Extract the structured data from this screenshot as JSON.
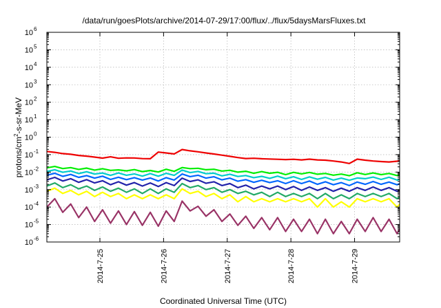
{
  "chart_data": {
    "type": "line",
    "title": "/data/run/goesPlots/archive/2014-07-29/17:00/flux/../flux/5daysMarsFluxes.txt",
    "xlabel": "Coordinated Universal Time (UTC)",
    "ylabel_parts": [
      "protons/cm",
      "2",
      "-s-sr-MeV"
    ],
    "y_scale": "log",
    "ylim": [
      1e-06,
      1000000.0
    ],
    "y_ticks": [
      {
        "base": "10",
        "exp": "-6",
        "value": 1e-06
      },
      {
        "base": "10",
        "exp": "-5",
        "value": 1e-05
      },
      {
        "base": "10",
        "exp": "-4",
        "value": 0.0001
      },
      {
        "base": "10",
        "exp": "-3",
        "value": 0.001
      },
      {
        "base": "10",
        "exp": "-2",
        "value": 0.01
      },
      {
        "base": "10",
        "exp": "-1",
        "value": 0.1
      },
      {
        "base": "10",
        "exp": "0",
        "value": 1
      },
      {
        "base": "10",
        "exp": "1",
        "value": 10
      },
      {
        "base": "10",
        "exp": "2",
        "value": 100
      },
      {
        "base": "10",
        "exp": "3",
        "value": 1000
      },
      {
        "base": "10",
        "exp": "4",
        "value": 10000
      },
      {
        "base": "10",
        "exp": "5",
        "value": 100000
      },
      {
        "base": "10",
        "exp": "6",
        "value": 1000000
      }
    ],
    "xlim": [
      "2014-07-24 04:00",
      "2014-07-29 17:00"
    ],
    "x_ticks": [
      "2014-7-25",
      "2014-7-26",
      "2014-7-27",
      "2014-7-28",
      "2014-7-29"
    ],
    "grid": true,
    "sampling_hours": 3.0,
    "series": [
      {
        "color": "#ee0000",
        "values": [
          0.152,
          0.135,
          0.115,
          0.105,
          0.09,
          0.082,
          0.072,
          0.063,
          0.075,
          0.062,
          0.065,
          0.064,
          0.059,
          0.058,
          0.14,
          0.125,
          0.11,
          0.195,
          0.165,
          0.145,
          0.125,
          0.109,
          0.093,
          0.08,
          0.068,
          0.06,
          0.062,
          0.058,
          0.056,
          0.054,
          0.052,
          0.054,
          0.05,
          0.055,
          0.05,
          0.048,
          0.043,
          0.038,
          0.031,
          0.055,
          0.048,
          0.043,
          0.04,
          0.038,
          0.042,
          0.044,
          0.046,
          0.042,
          0.045,
          0.04,
          0.039,
          0.038,
          0.037,
          0.039,
          0.036,
          0.035,
          0.037,
          0.036,
          0.032,
          0.03,
          0.033,
          0.031,
          0.028,
          0.026,
          0.032,
          0.028,
          0.03,
          0.03,
          0.03,
          0.033,
          0.031,
          0.034,
          0.032,
          0.031,
          0.03,
          0.03,
          0.028,
          0.026,
          0.028,
          0.028,
          0.027,
          0.025,
          0.024,
          0.028,
          0.025,
          0.023,
          0.027,
          0.025,
          0.023,
          0.022,
          0.035,
          0.165,
          0.14,
          0.115,
          0.1,
          0.085,
          0.072,
          0.063,
          0.055,
          0.046,
          0.038,
          0.034,
          0.042,
          0.04,
          0.038,
          0.045,
          0.04,
          0.05,
          0.052,
          0.048,
          0.062,
          0.06,
          0.05,
          0.058,
          0.058,
          0.07,
          0.061,
          0.06,
          0.11,
          0.09
        ]
      },
      {
        "color": "#00ee00",
        "values": [
          0.0175,
          0.021,
          0.0159,
          0.018,
          0.0143,
          0.0169,
          0.013,
          0.0157,
          0.0126,
          0.0134,
          0.0118,
          0.0139,
          0.0107,
          0.0124,
          0.0101,
          0.0146,
          0.0111,
          0.0182,
          0.0158,
          0.0165,
          0.0136,
          0.0146,
          0.0115,
          0.0127,
          0.0099,
          0.0112,
          0.0085,
          0.0107,
          0.0086,
          0.0098,
          0.0072,
          0.0097,
          0.0079,
          0.0096,
          0.0076,
          0.0084,
          0.0067,
          0.0077,
          0.0062,
          0.0092,
          0.0073,
          0.0089,
          0.0072,
          0.0084,
          0.0064,
          0.0088,
          0.0066,
          0.0083,
          0.0062,
          0.0076,
          0.0056,
          0.0074,
          0.0055,
          0.0068,
          0.0056,
          0.0071,
          0.0052,
          0.0067,
          0.0054,
          0.0066,
          0.0049,
          0.0065,
          0.0046,
          0.0057,
          0.0047,
          0.0054,
          0.0041,
          0.0057,
          0.0044,
          0.0057,
          0.0043,
          0.0053,
          0.0041,
          0.0056,
          0.0042,
          0.0052,
          0.0039,
          0.0047,
          0.0037,
          0.0049,
          0.0035,
          0.0042,
          0.0032,
          0.0043,
          0.0034,
          0.0044,
          0.0032,
          0.0041,
          0.0029,
          0.0041,
          0.0046,
          0.017,
          0.0124,
          0.0149,
          0.0114,
          0.0122,
          0.0093,
          0.0096,
          0.0076,
          0.0085,
          0.0064,
          0.0078,
          0.0061,
          0.0071,
          0.0053,
          0.0072,
          0.0059,
          0.0076,
          0.0061,
          0.0076,
          0.0056,
          0.0071,
          0.0054,
          0.0077,
          0.0058,
          0.0079,
          0.0064,
          0.0075,
          0.0066,
          0.0101
        ]
      },
      {
        "color": "#00cccc",
        "values": [
          0.0109,
          0.0136,
          0.0098,
          0.0116,
          0.0082,
          0.0105,
          0.0077,
          0.0088,
          0.0065,
          0.0089,
          0.0066,
          0.0079,
          0.0059,
          0.0082,
          0.0058,
          0.0085,
          0.0065,
          0.0132,
          0.0093,
          0.011,
          0.0081,
          0.0087,
          0.0061,
          0.0076,
          0.0056,
          0.0064,
          0.0048,
          0.0057,
          0.0044,
          0.0059,
          0.0042,
          0.0054,
          0.0038,
          0.0053,
          0.0039,
          0.005,
          0.0035,
          0.0045,
          0.0034,
          0.0046,
          0.0042,
          0.0052,
          0.0038,
          0.0051,
          0.0035,
          0.0048,
          0.0037,
          0.0045,
          0.0032,
          0.0045,
          0.0031,
          0.0039,
          0.0028,
          0.0039,
          0.003,
          0.0039,
          0.0027,
          0.0037,
          0.0026,
          0.0036,
          0.0026,
          0.0033,
          0.0025,
          0.0032,
          0.0023,
          0.0031,
          0.0021,
          0.003,
          0.0022,
          0.0032,
          0.0023,
          0.0028,
          0.0021,
          0.003,
          0.002,
          0.0026,
          0.0019,
          0.0027,
          0.0018,
          0.0023,
          0.0017,
          0.0022,
          0.0016,
          0.0022,
          0.0016,
          0.0023,
          0.0015,
          0.002,
          0.0015,
          0.0021,
          0.0021,
          0.0102,
          0.0076,
          0.0087,
          0.0065,
          0.0071,
          0.005,
          0.0061,
          0.0042,
          0.0048,
          0.0034,
          0.0045,
          0.0032,
          0.0044,
          0.0031,
          0.0039,
          0.0031,
          0.0044,
          0.0033,
          0.0044,
          0.0032,
          0.0043,
          0.0032,
          0.0042,
          0.0033,
          0.0045,
          0.0033,
          0.0043,
          0.0039,
          0.0059
        ]
      },
      {
        "color": "#0066ff",
        "values": [
          0.0066,
          0.0086,
          0.0057,
          0.0074,
          0.005,
          0.0063,
          0.0045,
          0.0058,
          0.0038,
          0.0051,
          0.0037,
          0.0048,
          0.0035,
          0.0046,
          0.0031,
          0.0048,
          0.0035,
          0.0078,
          0.0055,
          0.0066,
          0.0045,
          0.0054,
          0.0036,
          0.0045,
          0.003,
          0.0037,
          0.0026,
          0.0034,
          0.0025,
          0.0032,
          0.0022,
          0.0032,
          0.0022,
          0.0031,
          0.002,
          0.0028,
          0.0019,
          0.0025,
          0.0017,
          0.0027,
          0.002,
          0.0029,
          0.002,
          0.0027,
          0.0019,
          0.0028,
          0.0019,
          0.0025,
          0.0017,
          0.0026,
          0.0016,
          0.0023,
          0.0016,
          0.0022,
          0.0016,
          0.0022,
          0.0014,
          0.0021,
          0.0014,
          0.0019,
          0.0013,
          0.0019,
          0.0013,
          0.0017,
          0.0012,
          0.0017,
          0.0011,
          0.0016,
          0.0011,
          0.0016,
          0.0011,
          0.0016,
          0.001,
          0.0015,
          0.001,
          0.0014,
          0.0009,
          0.0014,
          0.0009,
          0.0012,
          0.0008,
          0.0012,
          0.0008,
          0.0012,
          0.0008,
          0.0012,
          0.0007,
          0.0011,
          0.0007,
          0.0011,
          0.001,
          0.0066,
          0.0045,
          0.0055,
          0.0037,
          0.0042,
          0.0028,
          0.0035,
          0.0022,
          0.0029,
          0.0019,
          0.0025,
          0.0017,
          0.0023,
          0.0015,
          0.0022,
          0.0016,
          0.0024,
          0.0016,
          0.0023,
          0.0016,
          0.0023,
          0.0016,
          0.0023,
          0.0017,
          0.0024,
          0.0017,
          0.0023,
          0.002,
          0.0035
        ]
      },
      {
        "color": "#2222aa",
        "values": [
          0.0036,
          0.005,
          0.0031,
          0.0042,
          0.0026,
          0.0037,
          0.0024,
          0.0032,
          0.0019,
          0.0028,
          0.0018,
          0.0025,
          0.0016,
          0.0024,
          0.0015,
          0.0025,
          0.0017,
          0.0045,
          0.0029,
          0.0036,
          0.0023,
          0.0028,
          0.0017,
          0.0022,
          0.0013,
          0.0018,
          0.0011,
          0.0016,
          0.0011,
          0.0016,
          0.001,
          0.0015,
          0.0009,
          0.0014,
          0.0009,
          0.0013,
          0.0008,
          0.0012,
          0.0008,
          0.0013,
          0.0009,
          0.0014,
          0.0009,
          0.0013,
          0.0008,
          0.0013,
          0.0008,
          0.0012,
          0.0007,
          0.0011,
          0.0007,
          0.0011,
          0.0007,
          0.001,
          0.0006,
          0.001,
          0.0006,
          0.0009,
          0.0006,
          0.0009,
          0.0005,
          0.0008,
          0.0005,
          0.0008,
          0.0005,
          0.0008,
          0.0005,
          0.0008,
          0.0005,
          0.0008,
          0.0005,
          0.0007,
          0.0004,
          0.0007,
          0.0004,
          0.0006,
          0.0004,
          0.0006,
          0.0004,
          0.0006,
          0.0003,
          0.0005,
          0.0003,
          0.0005,
          0.0003,
          0.0005,
          0.0003,
          0.0005,
          0.0003,
          0.0005,
          0.0005,
          0.0042,
          0.0026,
          0.0033,
          0.002,
          0.0026,
          0.0015,
          0.0019,
          0.0011,
          0.0016,
          0.0009,
          0.0013,
          0.0008,
          0.0011,
          0.0007,
          0.0011,
          0.0007,
          0.0011,
          0.0007,
          0.0011,
          0.0007,
          0.0011,
          0.0007,
          0.0011,
          0.0007,
          0.0011,
          0.0007,
          0.0011,
          0.0008,
          0.0016
        ]
      },
      {
        "color": "#22aa66",
        "values": [
          0.0016,
          0.0024,
          0.0013,
          0.0019,
          0.0011,
          0.0016,
          0.0009,
          0.0014,
          0.0008,
          0.0012,
          0.0007,
          0.0011,
          0.0006,
          0.0011,
          0.0006,
          0.0011,
          0.0007,
          0.0022,
          0.0013,
          0.0017,
          0.001,
          0.0013,
          0.0007,
          0.001,
          0.0006,
          0.0008,
          0.0005,
          0.0007,
          0.0004,
          0.0007,
          0.0004,
          0.0006,
          0.0004,
          0.0006,
          0.0003,
          0.0006,
          0.0003,
          0.0005,
          0.0003,
          0.0006,
          0.0004,
          0.0006,
          0.0004,
          0.0006,
          0.0003,
          0.0006,
          0.0003,
          0.0005,
          0.0003,
          0.0005,
          0.0003,
          0.0005,
          0.0002,
          0.0004,
          0.0002,
          0.0004,
          0.0002,
          0.0004,
          0.0002,
          0.0004,
          0.0002,
          0.0004,
          0.0002,
          0.0003,
          0.0002,
          0.0003,
          0.0002,
          0.0003,
          0.0002,
          0.0003,
          0.0002,
          0.0003,
          0.0002,
          0.0003,
          0.0001,
          0.0003,
          0.0001,
          0.0003,
          0.0001,
          0.0002,
          0.0001,
          0.0002,
          0.0001,
          0.0002,
          0.0001,
          0.0002,
          0.0001,
          0.0002,
          0.0001,
          0.0002,
          0.0002,
          0.002,
          0.0012,
          0.0015,
          0.0009,
          0.0012,
          0.0006,
          0.0009,
          0.0005,
          0.0007,
          0.0004,
          0.0006,
          0.0003,
          0.0005,
          0.0003,
          0.0005,
          0.0003,
          0.0005,
          0.0003,
          0.0005,
          0.0003,
          0.0005,
          0.0003,
          0.0005,
          0.0003,
          0.0005,
          0.0003,
          0.0005,
          0.0004,
          0.0007
        ]
      },
      {
        "color": "#ffff00",
        "values": [
          0.0008,
          0.0012,
          0.0006,
          0.0009,
          0.0005,
          0.0008,
          0.0004,
          0.0007,
          0.0004,
          0.0006,
          0.0003,
          0.0005,
          0.0003,
          0.0005,
          0.0003,
          0.0005,
          0.0003,
          0.0011,
          0.0006,
          0.0008,
          0.0004,
          0.0006,
          0.0003,
          0.0005,
          0.0002,
          0.0004,
          0.0002,
          0.0003,
          0.0002,
          0.0003,
          0.0002,
          0.0003,
          0.0002,
          0.0003,
          0.0001,
          0.0003,
          0.0001,
          0.0002,
          0.0001,
          0.0003,
          0.0002,
          0.0003,
          0.0002,
          0.0003,
          0.0001,
          0.0003,
          0.0001,
          0.0002,
          0.0001,
          0.0002,
          0.0001,
          0.0002,
          0.0001,
          0.0002,
          0.0001,
          0.0002,
          0.0001,
          0.0002,
          0.0001,
          0.0002,
          0.0001,
          0.0002,
          0.0001,
          0.0002,
          0.0001,
          0.0002,
          0.0001,
          0.0002,
          0.0001,
          0.0002,
          0.0001,
          0.0002,
          0.0001,
          0.0002,
          0.0001,
          0.0001,
          0.0001,
          0.0001,
          0.0001,
          0.0001,
          0.0001,
          0.0001,
          0.0001,
          0.0001,
          0.0001,
          0.0001,
          0.0001,
          0.0001,
          0.0001,
          0.0001,
          0.0001,
          0.001,
          0.0005,
          0.0007,
          0.0004,
          0.0005,
          0.0003,
          0.0004,
          0.0002,
          0.0003,
          0.0002,
          0.0003,
          0.0001,
          0.0002,
          0.0001,
          0.0002,
          0.0001,
          0.0002,
          0.0001,
          0.0002,
          0.0001,
          0.0002,
          0.0001,
          0.0002,
          0.0001,
          0.0002,
          0.0001,
          0.0002,
          0.0002,
          0.0003
        ]
      },
      {
        "color": "#993366",
        "values": [
          0.0001,
          0.0003,
          5e-05,
          0.00015,
          2.5e-05,
          0.0001,
          1.5e-05,
          7e-05,
          1.2e-05,
          6e-05,
          1e-05,
          5.5e-05,
          9e-06,
          5e-05,
          8e-06,
          6e-05,
          1.5e-05,
          0.00022,
          6e-05,
          0.00011,
          3e-05,
          7e-05,
          1.5e-05,
          4e-05,
          9e-06,
          3e-05,
          6e-06,
          2.5e-05,
          5e-06,
          2.5e-05,
          4e-06,
          2e-05,
          4e-06,
          2e-05,
          3e-06,
          2e-05,
          3e-06,
          1.5e-05,
          3e-06,
          2e-05,
          4e-06,
          2.5e-05,
          4e-06,
          2e-05,
          3e-06,
          2e-05,
          3e-06,
          1.8e-05,
          3e-06,
          1.8e-05,
          3e-06,
          1.5e-05,
          3e-06,
          1.5e-05,
          3e-06,
          1.5e-05,
          3e-06,
          1.4e-05,
          3e-06,
          1.3e-05,
          3e-06,
          1.3e-05,
          3e-06,
          1.2e-05,
          3e-06,
          1.2e-05,
          3e-06,
          1.2e-05,
          3e-06,
          1.2e-05,
          3e-06,
          1.1e-05,
          3e-06,
          1.1e-05,
          3e-06,
          1e-05,
          3e-06,
          1e-05,
          3e-06,
          1e-05,
          3e-06,
          1e-05,
          3e-06,
          1e-05,
          3e-06,
          1e-05,
          3e-06,
          1e-05,
          3e-06,
          1e-05,
          8e-06,
          0.00018,
          5e-05,
          9e-05,
          2e-05,
          5e-05,
          1e-05,
          3e-05,
          6e-06,
          2.5e-05,
          4e-06,
          2e-05,
          3e-06,
          1.8e-05,
          3e-06,
          1.8e-05,
          3e-06,
          1.8e-05,
          3e-06,
          1.8e-05,
          3e-06,
          1.8e-05,
          3e-06,
          1.8e-05,
          3e-06,
          2e-05,
          3e-06,
          2e-05,
          4e-06,
          2.5e-05
        ]
      }
    ]
  }
}
